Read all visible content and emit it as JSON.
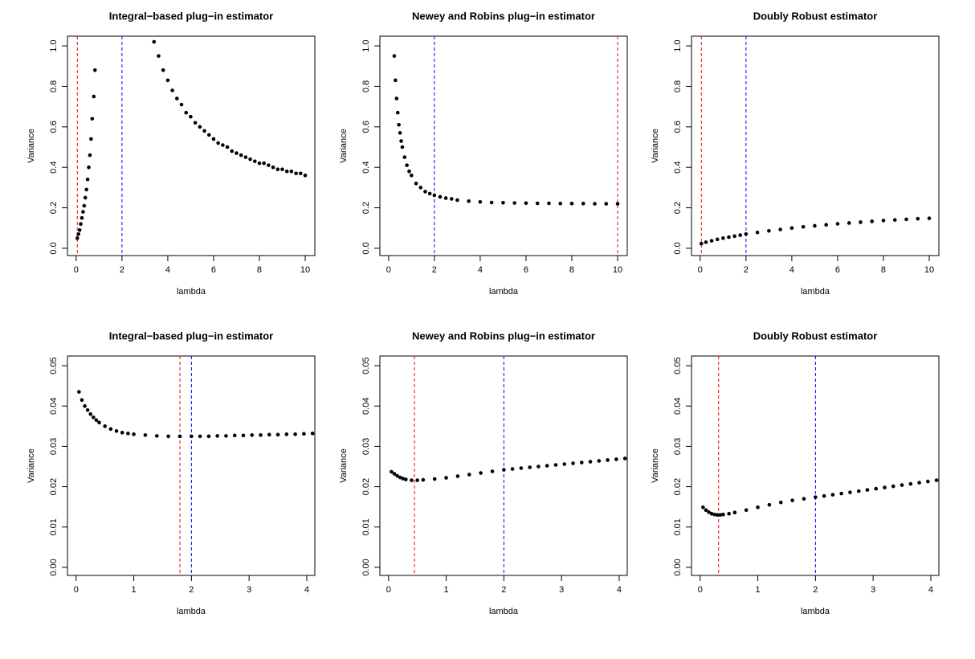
{
  "chart_data": [
    {
      "type": "scatter",
      "title": "Integral−based plug−in estimator",
      "x_label": "lambda",
      "y_label": "Variance",
      "xlim": [
        -0.38,
        10.42
      ],
      "ylim": [
        -0.036,
        1.048
      ],
      "xticks": [
        0,
        2,
        4,
        6,
        8,
        10
      ],
      "yticks": [
        {
          "value": 0,
          "label": "0.0"
        },
        0.2,
        0.4,
        0.6,
        0.8,
        {
          "value": 1,
          "label": "1.0"
        }
      ],
      "color": "#000000",
      "x": [
        0.05,
        0.1,
        0.15,
        0.2,
        0.25,
        0.3,
        0.35,
        0.4,
        0.45,
        0.5,
        0.55,
        0.6,
        0.65,
        0.7,
        0.77,
        0.82,
        3.4,
        3.6,
        3.8,
        4.0,
        4.2,
        4.4,
        4.6,
        4.8,
        5.0,
        5.2,
        5.4,
        5.6,
        5.8,
        6.0,
        6.2,
        6.4,
        6.6,
        6.8,
        7.0,
        7.2,
        7.4,
        7.6,
        7.8,
        8.0,
        8.2,
        8.4,
        8.6,
        8.8,
        9.0,
        9.2,
        9.4,
        9.6,
        9.8,
        10.0
      ],
      "values": [
        0.05,
        0.07,
        0.09,
        0.12,
        0.15,
        0.18,
        0.21,
        0.25,
        0.29,
        0.34,
        0.4,
        0.46,
        0.54,
        0.64,
        0.75,
        0.88,
        1.02,
        0.95,
        0.88,
        0.83,
        0.78,
        0.74,
        0.71,
        0.67,
        0.65,
        0.62,
        0.6,
        0.58,
        0.56,
        0.54,
        0.52,
        0.51,
        0.5,
        0.48,
        0.47,
        0.46,
        0.45,
        0.44,
        0.43,
        0.42,
        0.42,
        0.41,
        0.4,
        0.39,
        0.39,
        0.38,
        0.38,
        0.37,
        0.37,
        0.36
      ],
      "vlines": [
        {
          "value": 0.05,
          "color": "#ff0000"
        },
        {
          "value": 2,
          "color": "#0000ff"
        }
      ]
    },
    {
      "type": "scatter",
      "title": "Newey and Robins plug−in estimator",
      "x_label": "lambda",
      "y_label": "Variance",
      "xlim": [
        -0.38,
        10.42
      ],
      "ylim": [
        -0.036,
        1.048
      ],
      "xticks": [
        0,
        2,
        4,
        6,
        8,
        10
      ],
      "yticks": [
        {
          "value": 0,
          "label": "0.0"
        },
        0.2,
        0.4,
        0.6,
        0.8,
        {
          "value": 1,
          "label": "1.0"
        }
      ],
      "color": "#000000",
      "x": [
        0.25,
        0.3,
        0.35,
        0.4,
        0.45,
        0.5,
        0.55,
        0.6,
        0.7,
        0.8,
        0.9,
        1.0,
        1.2,
        1.4,
        1.6,
        1.8,
        2.0,
        2.25,
        2.5,
        2.75,
        3.0,
        3.5,
        4.0,
        4.5,
        5.0,
        5.5,
        6.0,
        6.5,
        7.0,
        7.5,
        8.0,
        8.5,
        9.0,
        9.5,
        10.0
      ],
      "values": [
        0.95,
        0.83,
        0.74,
        0.67,
        0.61,
        0.57,
        0.53,
        0.5,
        0.45,
        0.41,
        0.38,
        0.36,
        0.32,
        0.3,
        0.28,
        0.27,
        0.262,
        0.254,
        0.248,
        0.244,
        0.238,
        0.233,
        0.229,
        0.226,
        0.225,
        0.224,
        0.223,
        0.222,
        0.222,
        0.221,
        0.221,
        0.221,
        0.22,
        0.22,
        0.22
      ],
      "vlines": [
        {
          "value": 10,
          "color": "#ff0000"
        },
        {
          "value": 2,
          "color": "#0000ff"
        }
      ]
    },
    {
      "type": "scatter",
      "title": "Doubly Robust estimator",
      "x_label": "lambda",
      "y_label": "Variance",
      "xlim": [
        -0.38,
        10.42
      ],
      "ylim": [
        -0.036,
        1.048
      ],
      "xticks": [
        0,
        2,
        4,
        6,
        8,
        10
      ],
      "yticks": [
        {
          "value": 0,
          "label": "0.0"
        },
        0.2,
        0.4,
        0.6,
        0.8,
        {
          "value": 1,
          "label": "1.0"
        }
      ],
      "color": "#000000",
      "x": [
        0.05,
        0.25,
        0.5,
        0.75,
        1.0,
        1.25,
        1.5,
        1.75,
        2.0,
        2.5,
        3.0,
        3.5,
        4.0,
        4.5,
        5.0,
        5.5,
        6.0,
        6.5,
        7.0,
        7.5,
        8.0,
        8.5,
        9.0,
        9.5,
        10.0
      ],
      "values": [
        0.023,
        0.03,
        0.037,
        0.044,
        0.05,
        0.055,
        0.06,
        0.065,
        0.07,
        0.078,
        0.086,
        0.093,
        0.1,
        0.106,
        0.111,
        0.116,
        0.121,
        0.125,
        0.129,
        0.133,
        0.137,
        0.14,
        0.143,
        0.146,
        0.148
      ],
      "vlines": [
        {
          "value": 0.05,
          "color": "#ff0000"
        },
        {
          "value": 2,
          "color": "#0000ff"
        }
      ]
    },
    {
      "type": "scatter",
      "title": "Integral−based plug−in estimator",
      "x_label": "lambda",
      "y_label": "Variance",
      "xlim": [
        -0.15,
        4.14
      ],
      "ylim": [
        -0.002,
        0.0524
      ],
      "xticks": [
        0,
        1,
        2,
        3,
        4
      ],
      "yticks": [
        {
          "value": 0,
          "label": "0.00"
        },
        {
          "value": 0.01,
          "label": "0.01"
        },
        {
          "value": 0.02,
          "label": "0.02"
        },
        {
          "value": 0.03,
          "label": "0.03"
        },
        {
          "value": 0.04,
          "label": "0.04"
        },
        {
          "value": 0.05,
          "label": "0.05"
        }
      ],
      "color": "#000000",
      "x": [
        0.05,
        0.1,
        0.15,
        0.2,
        0.25,
        0.3,
        0.35,
        0.4,
        0.5,
        0.6,
        0.7,
        0.8,
        0.9,
        1.0,
        1.2,
        1.4,
        1.6,
        1.8,
        2.0,
        2.15,
        2.3,
        2.45,
        2.6,
        2.75,
        2.9,
        3.05,
        3.2,
        3.35,
        3.5,
        3.65,
        3.8,
        3.95,
        4.1
      ],
      "values": [
        0.0435,
        0.0415,
        0.04,
        0.039,
        0.038,
        0.0372,
        0.0365,
        0.0359,
        0.035,
        0.0343,
        0.0338,
        0.0334,
        0.0332,
        0.033,
        0.0328,
        0.0326,
        0.0325,
        0.0325,
        0.0325,
        0.0325,
        0.0325,
        0.0326,
        0.0326,
        0.0327,
        0.0327,
        0.0328,
        0.0328,
        0.0329,
        0.0329,
        0.033,
        0.033,
        0.0331,
        0.0332
      ],
      "vlines": [
        {
          "value": 1.8,
          "color": "#ff0000"
        },
        {
          "value": 2,
          "color": "#0000ff"
        }
      ]
    },
    {
      "type": "scatter",
      "title": "Newey and Robins plug−in estimator",
      "x_label": "lambda",
      "y_label": "Variance",
      "xlim": [
        -0.15,
        4.14
      ],
      "ylim": [
        -0.002,
        0.0524
      ],
      "xticks": [
        0,
        1,
        2,
        3,
        4
      ],
      "yticks": [
        {
          "value": 0,
          "label": "0.00"
        },
        {
          "value": 0.01,
          "label": "0.01"
        },
        {
          "value": 0.02,
          "label": "0.02"
        },
        {
          "value": 0.03,
          "label": "0.03"
        },
        {
          "value": 0.04,
          "label": "0.04"
        },
        {
          "value": 0.05,
          "label": "0.05"
        }
      ],
      "color": "#000000",
      "x": [
        0.05,
        0.1,
        0.15,
        0.2,
        0.25,
        0.3,
        0.4,
        0.5,
        0.6,
        0.8,
        1.0,
        1.2,
        1.4,
        1.6,
        1.8,
        2.0,
        2.15,
        2.3,
        2.45,
        2.6,
        2.75,
        2.9,
        3.05,
        3.2,
        3.35,
        3.5,
        3.65,
        3.8,
        3.95,
        4.1
      ],
      "values": [
        0.0237,
        0.0232,
        0.0227,
        0.0223,
        0.022,
        0.0218,
        0.0216,
        0.0216,
        0.0217,
        0.0219,
        0.0222,
        0.0226,
        0.023,
        0.0234,
        0.0238,
        0.0242,
        0.0244,
        0.0246,
        0.0248,
        0.025,
        0.0252,
        0.0254,
        0.0256,
        0.0258,
        0.026,
        0.0262,
        0.0264,
        0.0266,
        0.0268,
        0.027
      ],
      "vlines": [
        {
          "value": 0.45,
          "color": "#ff0000"
        },
        {
          "value": 2,
          "color": "#0000ff"
        }
      ]
    },
    {
      "type": "scatter",
      "title": "Doubly Robust estimator",
      "x_label": "lambda",
      "y_label": "Variance",
      "xlim": [
        -0.15,
        4.14
      ],
      "ylim": [
        -0.002,
        0.0524
      ],
      "xticks": [
        0,
        1,
        2,
        3,
        4
      ],
      "yticks": [
        {
          "value": 0,
          "label": "0.00"
        },
        {
          "value": 0.01,
          "label": "0.01"
        },
        {
          "value": 0.02,
          "label": "0.02"
        },
        {
          "value": 0.03,
          "label": "0.03"
        },
        {
          "value": 0.04,
          "label": "0.04"
        },
        {
          "value": 0.05,
          "label": "0.05"
        }
      ],
      "color": "#000000",
      "x": [
        0.05,
        0.1,
        0.15,
        0.2,
        0.25,
        0.3,
        0.35,
        0.4,
        0.5,
        0.6,
        0.8,
        1.0,
        1.2,
        1.4,
        1.6,
        1.8,
        2.0,
        2.15,
        2.3,
        2.45,
        2.6,
        2.75,
        2.9,
        3.05,
        3.2,
        3.35,
        3.5,
        3.65,
        3.8,
        3.95,
        4.1
      ],
      "values": [
        0.0149,
        0.0142,
        0.0137,
        0.0133,
        0.0131,
        0.013,
        0.013,
        0.0131,
        0.0133,
        0.0136,
        0.0142,
        0.0149,
        0.0155,
        0.0161,
        0.0166,
        0.017,
        0.0174,
        0.0177,
        0.018,
        0.0183,
        0.0186,
        0.0189,
        0.0192,
        0.0195,
        0.0198,
        0.0201,
        0.0204,
        0.0207,
        0.021,
        0.0213,
        0.0216
      ],
      "vlines": [
        {
          "value": 0.32,
          "color": "#ff0000"
        },
        {
          "value": 2,
          "color": "#0000ff"
        }
      ]
    }
  ]
}
